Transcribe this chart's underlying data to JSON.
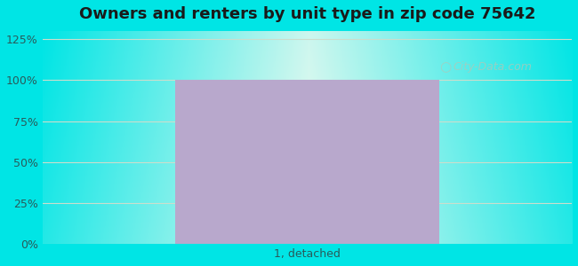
{
  "title": "Owners and renters by unit type in zip code 75642",
  "title_fontsize": 13,
  "title_fontweight": "bold",
  "categories": [
    "1, detached"
  ],
  "values": [
    100
  ],
  "bar_color": "#b8a8cc",
  "bar_width": 0.5,
  "yticks": [
    0,
    25,
    50,
    75,
    100,
    125
  ],
  "ytick_labels": [
    "0%",
    "25%",
    "50%",
    "75%",
    "100%",
    "125%"
  ],
  "ylim": [
    0,
    130
  ],
  "background_outer": "#00e5e5",
  "background_inner": "#f0faf0",
  "grid_color": "#ccddcc",
  "watermark_text": "City-Data.com",
  "watermark_color": "#b0c8b8",
  "tick_label_color": "#2a5a5a",
  "xlabel_color": "#2a5a5a"
}
